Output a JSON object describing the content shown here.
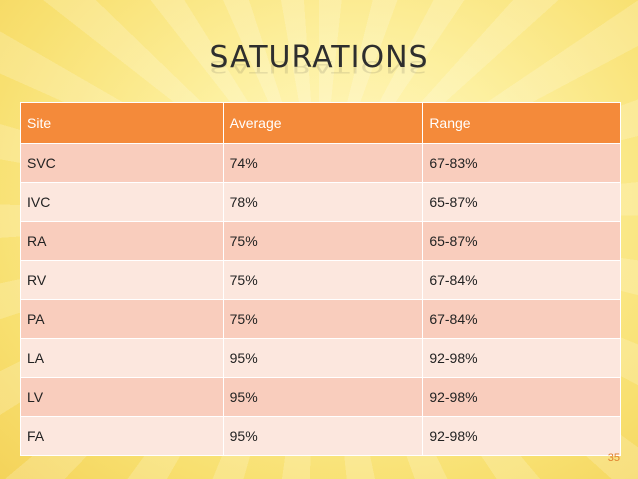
{
  "slide": {
    "title": "SATURATIONS",
    "page_number": "35"
  },
  "table": {
    "headers": [
      "Site",
      "Average",
      "Range"
    ],
    "rows": [
      [
        "SVC",
        "74%",
        "67-83%"
      ],
      [
        "IVC",
        "78%",
        "65-87%"
      ],
      [
        "RA",
        "75%",
        "65-87%"
      ],
      [
        "RV",
        "75%",
        "67-84%"
      ],
      [
        "PA",
        "75%",
        "67-84%"
      ],
      [
        "LA",
        "95%",
        "92-98%"
      ],
      [
        "LV",
        "95%",
        "92-98%"
      ],
      [
        "FA",
        "95%",
        "92-98%"
      ]
    ]
  },
  "colors": {
    "header_bg": "#f48a3a",
    "row_odd": "#f9cdbd",
    "row_even": "#fce7de",
    "background": "#fdf0a0"
  }
}
